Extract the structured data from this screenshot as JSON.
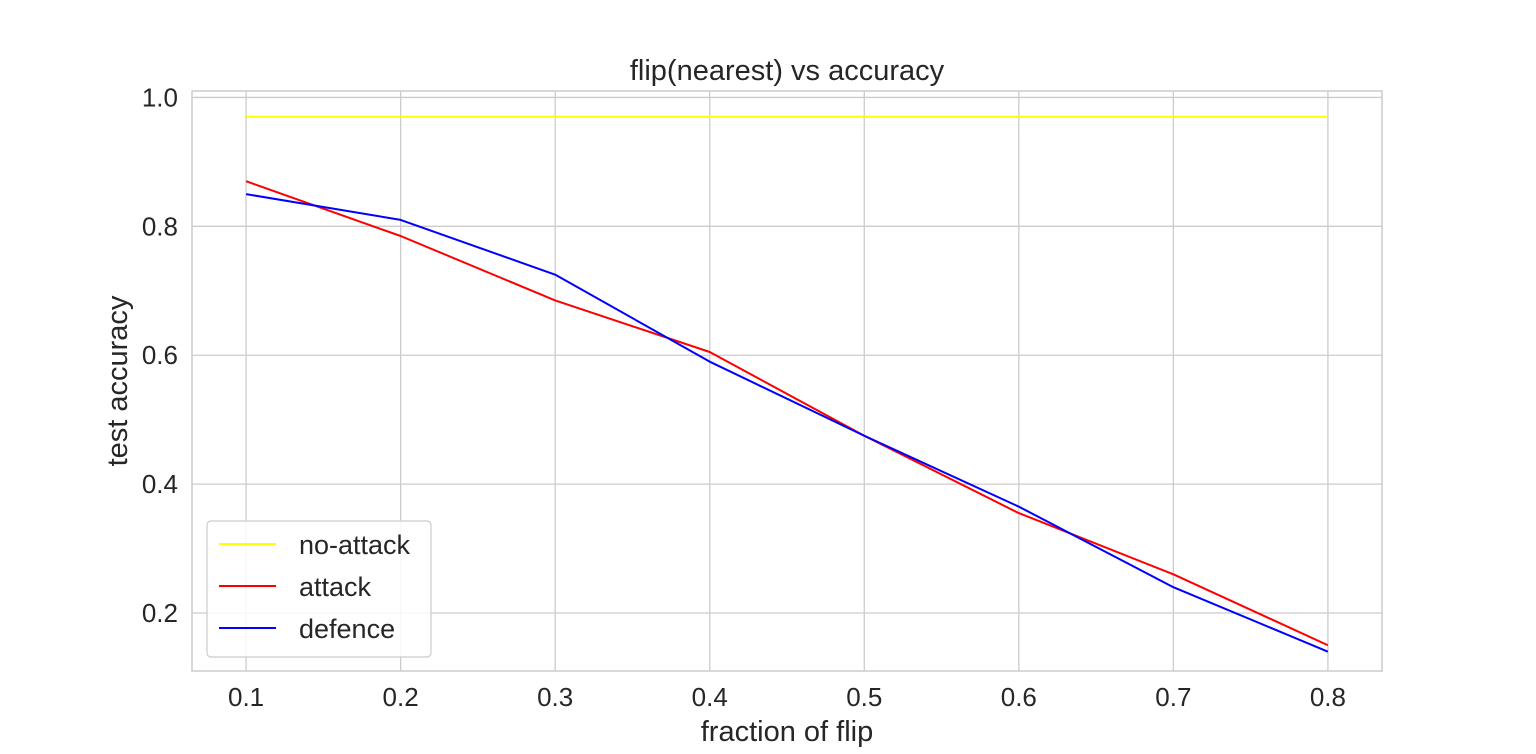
{
  "chart_data": {
    "type": "line",
    "title": "flip(nearest) vs accuracy",
    "xlabel": "fraction of flip",
    "ylabel": "test accuracy",
    "x": [
      0.1,
      0.2,
      0.3,
      0.4,
      0.5,
      0.6,
      0.7,
      0.8
    ],
    "xticks": [
      "0.1",
      "0.2",
      "0.3",
      "0.4",
      "0.5",
      "0.6",
      "0.7",
      "0.8"
    ],
    "yticks": [
      "0.2",
      "0.4",
      "0.6",
      "0.8",
      "1.0"
    ],
    "xlim": [
      0.065,
      0.835
    ],
    "ylim": [
      0.11,
      1.01
    ],
    "grid": true,
    "legend_position": "lower-left",
    "series": [
      {
        "name": "no-attack",
        "color": "#ffff00",
        "values": [
          0.97,
          0.97,
          0.97,
          0.97,
          0.97,
          0.97,
          0.97,
          0.97
        ]
      },
      {
        "name": "attack",
        "color": "#ff0000",
        "values": [
          0.87,
          0.785,
          0.685,
          0.605,
          0.475,
          0.355,
          0.26,
          0.15
        ]
      },
      {
        "name": "defence",
        "color": "#0000ff",
        "values": [
          0.85,
          0.81,
          0.725,
          0.59,
          0.475,
          0.365,
          0.24,
          0.14
        ]
      }
    ]
  }
}
